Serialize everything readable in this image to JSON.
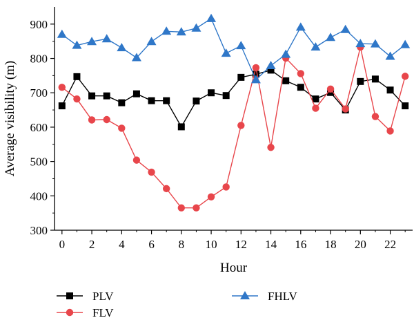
{
  "chart_data": {
    "type": "line",
    "xlabel": "Hour",
    "ylabel": "Average visibility (m)",
    "xlim": [
      -0.5,
      23.5
    ],
    "ylim": [
      300,
      950
    ],
    "x_ticks": [
      0,
      2,
      4,
      6,
      8,
      10,
      12,
      14,
      16,
      18,
      20,
      22
    ],
    "y_ticks": [
      300,
      400,
      500,
      600,
      700,
      800,
      900
    ],
    "grid": false,
    "legend_position": "bottom",
    "x": [
      0,
      1,
      2,
      3,
      4,
      5,
      6,
      7,
      8,
      9,
      10,
      11,
      12,
      13,
      14,
      15,
      16,
      17,
      18,
      19,
      20,
      21,
      22,
      23
    ],
    "series": [
      {
        "name": "PLV",
        "color": "#000000",
        "marker": "square",
        "values": [
          662,
          747,
          691,
          691,
          671,
          697,
          677,
          677,
          601,
          676,
          700,
          692,
          745,
          754,
          766,
          735,
          716,
          682,
          701,
          650,
          733,
          740,
          708,
          662
        ]
      },
      {
        "name": "FLV",
        "color": "#e8464b",
        "marker": "circle",
        "values": [
          716,
          682,
          621,
          622,
          597,
          504,
          469,
          421,
          365,
          365,
          397,
          426,
          605,
          773,
          541,
          801,
          756,
          655,
          711,
          653,
          833,
          631,
          589,
          748
        ]
      },
      {
        "name": "FHLV",
        "color": "#2f77c8",
        "marker": "triangle",
        "values": [
          870,
          838,
          849,
          857,
          831,
          802,
          849,
          879,
          877,
          888,
          916,
          815,
          837,
          738,
          779,
          812,
          891,
          833,
          861,
          884,
          843,
          842,
          806,
          840
        ]
      }
    ]
  }
}
